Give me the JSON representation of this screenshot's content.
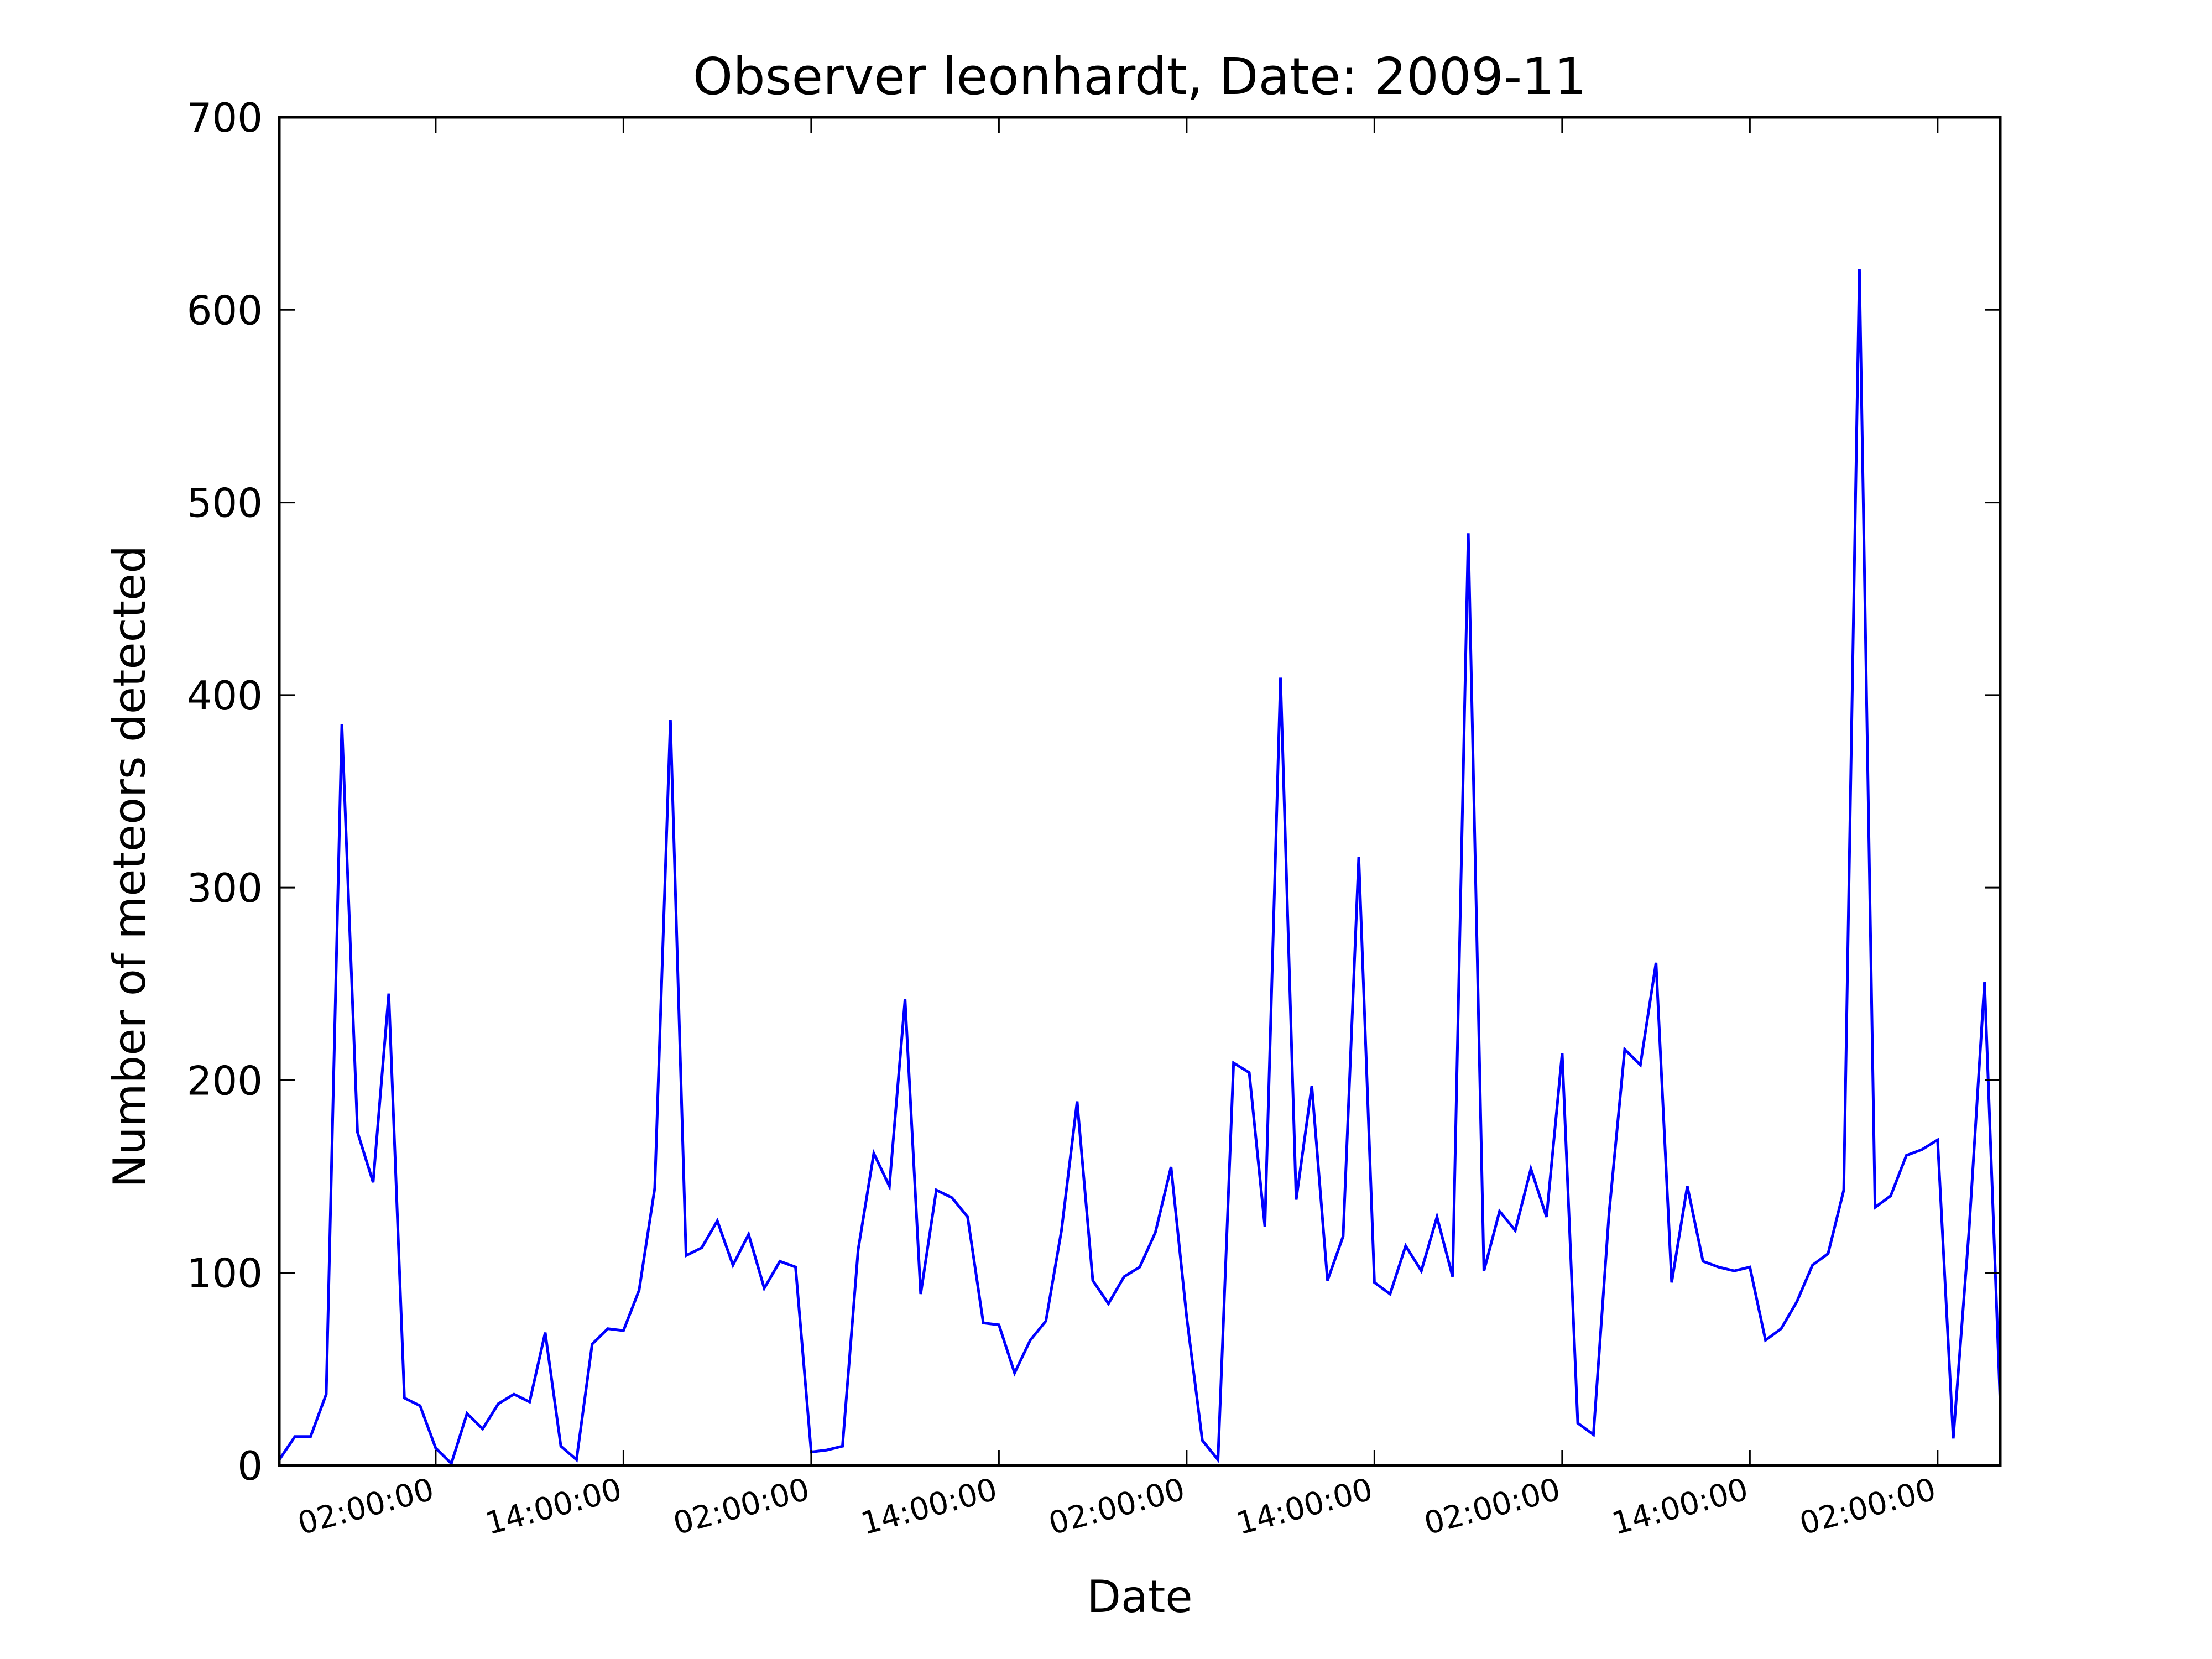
{
  "chart_data": {
    "type": "line",
    "title": "Observer leonhardt, Date: 2009-11",
    "xlabel": "Date",
    "ylabel": "Number of meteors detected",
    "ylim": [
      0,
      700
    ],
    "yticks": [
      0,
      100,
      200,
      300,
      400,
      500,
      600,
      700
    ],
    "xtick_labels": [
      "02:00:00",
      "14:00:00",
      "02:00:00",
      "14:00:00",
      "02:00:00",
      "14:00:00",
      "02:00:00",
      "14:00:00",
      "02:00:00"
    ],
    "x_unit": "hour",
    "x_range": [
      0,
      110
    ],
    "xtick_positions": [
      10,
      22,
      34,
      46,
      58,
      70,
      82,
      94,
      106
    ],
    "grid": false,
    "line_color": "#0000ff",
    "series": [
      {
        "x": [
          0,
          1,
          2,
          3,
          4,
          5,
          6,
          7,
          8,
          9,
          10,
          11,
          12,
          13,
          14,
          15,
          16,
          17,
          18,
          19,
          20,
          21,
          22,
          23,
          24,
          25,
          26,
          27,
          28,
          29,
          30,
          31,
          32,
          33,
          34,
          35,
          36,
          37,
          38,
          39,
          40,
          41,
          42,
          43,
          44,
          45,
          46,
          47,
          48,
          49,
          50,
          51,
          52,
          53,
          54,
          55,
          56,
          57,
          58,
          59,
          60,
          61,
          62,
          63,
          64,
          65,
          66,
          67,
          68,
          69,
          70,
          71,
          72,
          73,
          74,
          75,
          76,
          77,
          78,
          79,
          80,
          81,
          82,
          83,
          84,
          85,
          86,
          87,
          88,
          89,
          90,
          91,
          92,
          93,
          94,
          95,
          96,
          97,
          98,
          99,
          100,
          101,
          102,
          103,
          104,
          105,
          106,
          107,
          108,
          109,
          110
        ],
        "values": [
          3,
          15,
          15,
          37,
          385,
          173,
          147,
          245,
          35,
          31,
          9,
          1,
          27,
          19,
          32,
          37,
          33,
          69,
          10,
          3,
          63,
          71,
          70,
          91,
          144,
          387,
          109,
          113,
          127,
          104,
          120,
          92,
          106,
          103,
          7,
          8,
          10,
          112,
          162,
          145,
          242,
          89,
          143,
          139,
          129,
          74,
          73,
          48,
          65,
          75,
          122,
          189,
          96,
          84,
          98,
          103,
          121,
          155,
          77,
          13,
          3,
          209,
          204,
          124,
          409,
          138,
          197,
          96,
          119,
          316,
          95,
          89,
          114,
          101,
          129,
          98,
          484,
          101,
          132,
          122,
          154,
          129,
          214,
          22,
          16,
          131,
          216,
          208,
          261,
          95,
          145,
          106,
          103,
          101,
          103,
          65,
          71,
          85,
          104,
          110,
          143,
          621,
          134,
          140,
          161,
          164,
          169,
          14,
          121,
          251,
          32
        ]
      }
    ]
  }
}
